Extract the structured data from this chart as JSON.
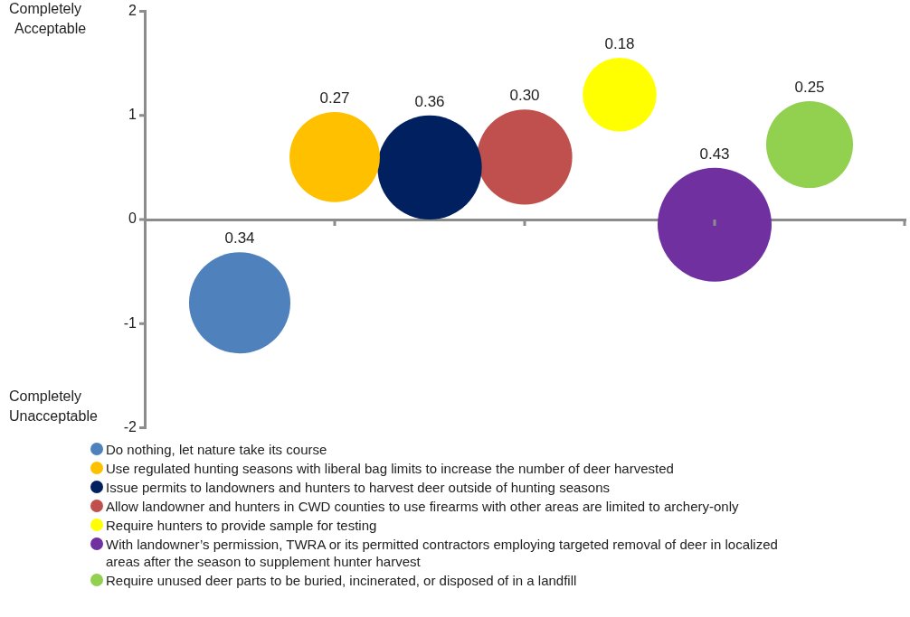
{
  "chart_data": {
    "type": "bubble",
    "categories": [
      null,
      null,
      null,
      null,
      null,
      null,
      null
    ],
    "ylim": [
      -2,
      2
    ],
    "yticks": [
      -2,
      -1,
      0,
      1,
      2
    ],
    "tick_labels": "y",
    "legend": "bottom",
    "annotations": [
      "Completely Acceptable",
      "Completely Unacceptable"
    ],
    "series": [
      {
        "name": "Do nothing, let nature take its course",
        "color": "#4f81bd",
        "values": [
          -0.8,
          null,
          null,
          null,
          null,
          null,
          null
        ],
        "sizes": [
          0.34,
          null,
          null,
          null,
          null,
          null,
          null
        ],
        "value_labels": [
          "0.34",
          null,
          null,
          null,
          null,
          null,
          null
        ]
      },
      {
        "name": "Use regulated hunting seasons with liberal bag limits to increase the number of deer harvested",
        "color": "#ffc000",
        "values": [
          null,
          0.6,
          null,
          null,
          null,
          null,
          null
        ],
        "sizes": [
          null,
          0.27,
          null,
          null,
          null,
          null,
          null
        ],
        "value_labels": [
          null,
          "0.27",
          null,
          null,
          null,
          null,
          null
        ]
      },
      {
        "name": "Issue permits to landowners and hunters to harvest deer outside of hunting seasons",
        "color": "#002060",
        "values": [
          null,
          null,
          0.5,
          null,
          null,
          null,
          null
        ],
        "sizes": [
          null,
          null,
          0.36,
          null,
          null,
          null,
          null
        ],
        "value_labels": [
          null,
          null,
          "0.36",
          null,
          null,
          null,
          null
        ]
      },
      {
        "name": "Allow landowner and hunters in CWD counties to use firearms with other areas are limited to archery-only",
        "color": "#c0504d",
        "values": [
          null,
          null,
          null,
          0.6,
          null,
          null,
          null
        ],
        "sizes": [
          null,
          null,
          null,
          0.3,
          null,
          null,
          null
        ],
        "value_labels": [
          null,
          null,
          null,
          "0.30",
          null,
          null,
          null
        ]
      },
      {
        "name": "Require hunters to provide sample for testing",
        "color": "#ffff00",
        "values": [
          null,
          null,
          null,
          null,
          1.2,
          null,
          null
        ],
        "sizes": [
          null,
          null,
          null,
          null,
          0.18,
          null,
          null
        ],
        "value_labels": [
          null,
          null,
          null,
          null,
          "0.18",
          null,
          null
        ]
      },
      {
        "name": "With landowner’s permission, TWRA or its permitted contractors employing targeted removal of deer in localized areas after the season to supplement hunter harvest",
        "color": "#7030a0",
        "values": [
          null,
          null,
          null,
          null,
          null,
          -0.05,
          null
        ],
        "sizes": [
          null,
          null,
          null,
          null,
          null,
          0.43,
          null
        ],
        "value_labels": [
          null,
          null,
          null,
          null,
          null,
          "0.43",
          null
        ]
      },
      {
        "name": "Require unused deer parts to be buried, incinerated, or disposed of in a landfill",
        "color": "#92d050",
        "values": [
          null,
          null,
          null,
          null,
          null,
          null,
          0.72
        ],
        "sizes": [
          null,
          null,
          null,
          null,
          null,
          null,
          0.25
        ],
        "value_labels": [
          null,
          null,
          null,
          null,
          null,
          null,
          "0.25"
        ]
      }
    ]
  }
}
